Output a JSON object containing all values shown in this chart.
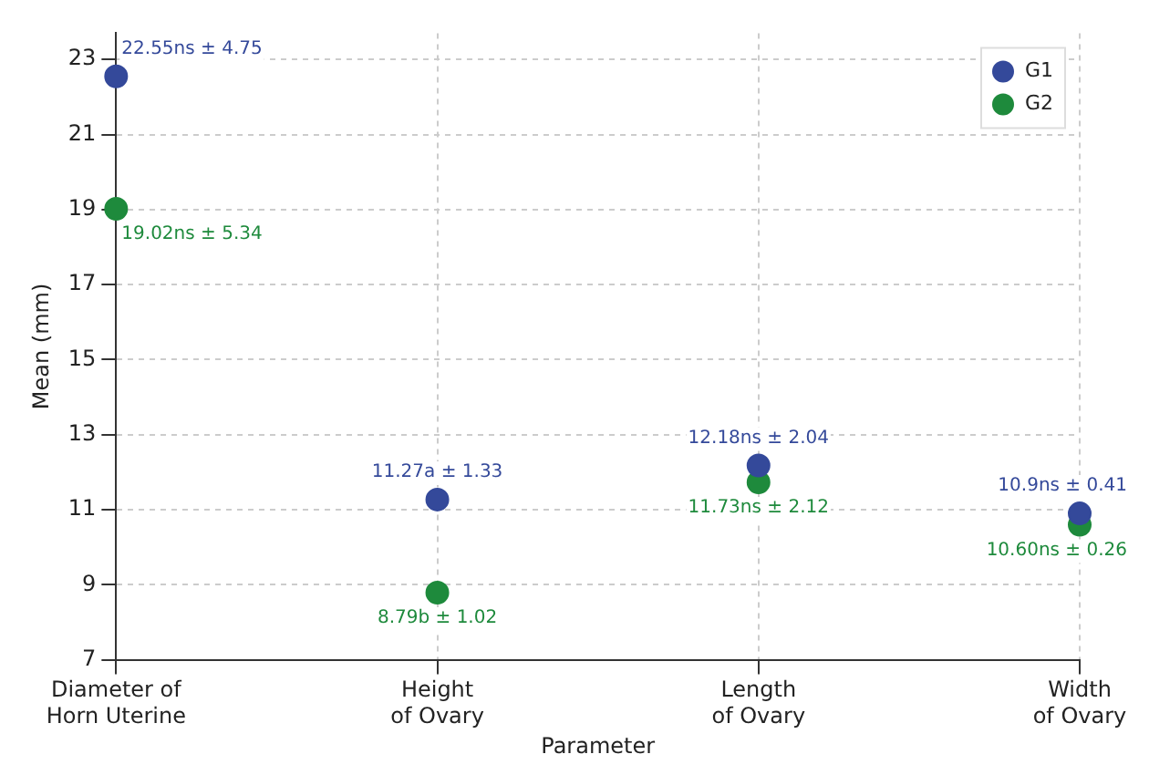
{
  "chart_data": {
    "type": "scatter",
    "xlabel": "Parameter",
    "ylabel": "Mean (mm)",
    "categories": [
      "Diameter of\nHorn Uterine",
      "Height\nof Ovary",
      "Length\nof Ovary",
      "Width\nof Ovary"
    ],
    "series": [
      {
        "name": "G1",
        "color": "#34499a",
        "values": [
          22.55,
          11.27,
          12.18,
          10.9
        ],
        "value_labels": [
          "22.55ns ± 4.75",
          "11.27a ± 1.33",
          "12.18ns ± 2.04",
          "10.9ns ± 0.41"
        ]
      },
      {
        "name": "G2",
        "color": "#1e8a3c",
        "values": [
          19.02,
          8.79,
          11.73,
          10.6
        ],
        "value_labels": [
          "19.02ns ± 5.34",
          "8.79b ± 1.02",
          "11.73ns ± 2.12",
          "10.60ns ± 0.26"
        ]
      }
    ],
    "ylim": [
      7,
      23.7
    ],
    "yticks": [
      7,
      9,
      11,
      13,
      15,
      17,
      19,
      21,
      23
    ],
    "grid": true,
    "legend": "top right",
    "marker": "circle"
  }
}
